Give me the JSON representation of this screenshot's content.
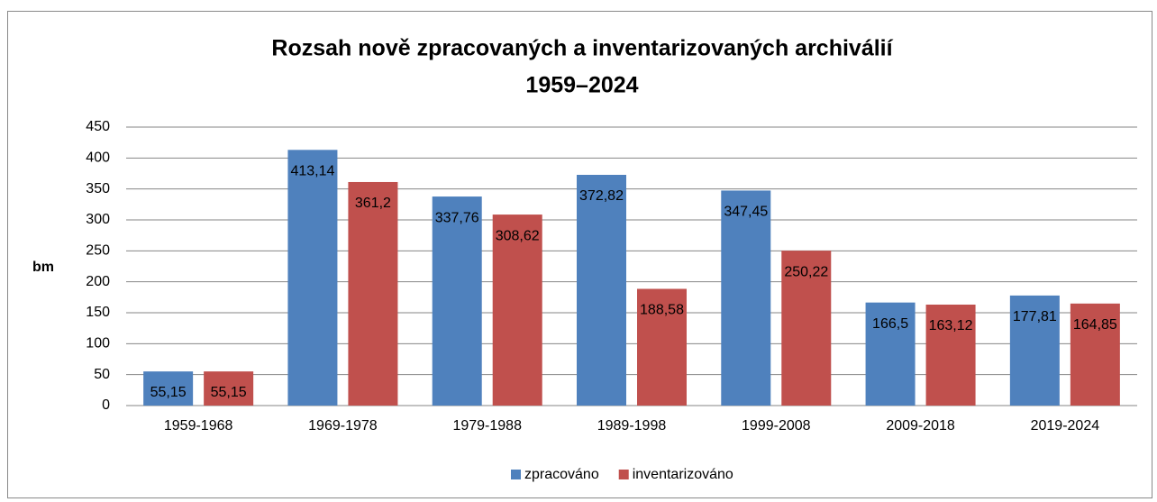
{
  "chart_data": {
    "type": "bar",
    "title": "Rozsah nově zpracovaných a inventarizovaných archiválií",
    "subtitle": "1959–2024",
    "y_label": "bm",
    "categories": [
      "1959-1968",
      "1969-1978",
      "1979-1988",
      "1989-1998",
      "1999-2008",
      "2009-2018",
      "2019-2024"
    ],
    "series": [
      {
        "name": "zpracováno",
        "color": "#4f81bd",
        "values": [
          55.15,
          413.14,
          337.76,
          372.82,
          347.45,
          166.5,
          177.81
        ],
        "value_labels": [
          "55,15",
          "413,14",
          "337,76",
          "372,82",
          "347,45",
          "166,5",
          "177,81"
        ]
      },
      {
        "name": "inventarizováno",
        "color": "#c0504d",
        "values": [
          55.15,
          361.2,
          308.62,
          188.58,
          250.22,
          163.12,
          164.85
        ],
        "value_labels": [
          "55,15",
          "361,2",
          "308,62",
          "188,58",
          "250,22",
          "163,12",
          "164,85"
        ]
      }
    ],
    "ylim": [
      0,
      450
    ],
    "yticks": [
      0,
      50,
      100,
      150,
      200,
      250,
      300,
      350,
      400,
      450
    ],
    "grid": true,
    "legend": "bottom"
  }
}
